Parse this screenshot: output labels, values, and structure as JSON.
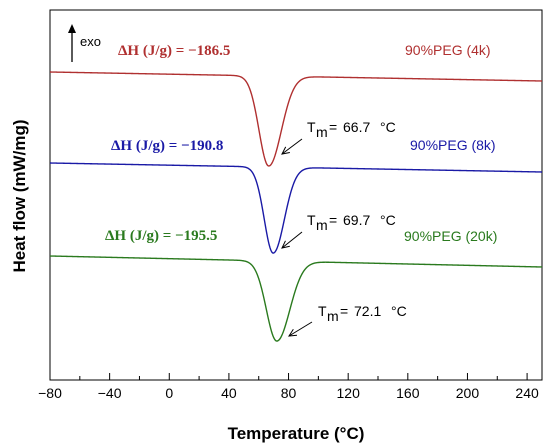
{
  "chart_data": {
    "type": "line",
    "title": "",
    "xlabel": "Temperature (°C)",
    "ylabel": "Heat flow (mW/mg)",
    "xlim": [
      -80,
      250
    ],
    "x_ticks": [
      "−80",
      "−40",
      "0",
      "40",
      "80",
      "120",
      "160",
      "200",
      "240"
    ],
    "x_tick_values": [
      -80,
      -40,
      0,
      40,
      80,
      120,
      160,
      200,
      240
    ],
    "grid": false,
    "exo_indicator": "exo",
    "series": [
      {
        "name": "90%PEG (4k)",
        "color": "#b03030",
        "delta_h": "ΔH (J/g) = −186.5",
        "tm": "66.7",
        "peak_x": 66.7
      },
      {
        "name": "90%PEG (8k)",
        "color": "#1a1aa6",
        "delta_h": "ΔH (J/g) = −190.8",
        "tm": "69.7",
        "peak_x": 69.7
      },
      {
        "name": "90%PEG (20k)",
        "color": "#2a7a1e",
        "delta_h": "ΔH (J/g) = −195.5",
        "tm": "72.1",
        "peak_x": 72.1
      }
    ],
    "tm_symbol": "T",
    "tm_subscript": "m",
    "tm_unit": "°C"
  }
}
